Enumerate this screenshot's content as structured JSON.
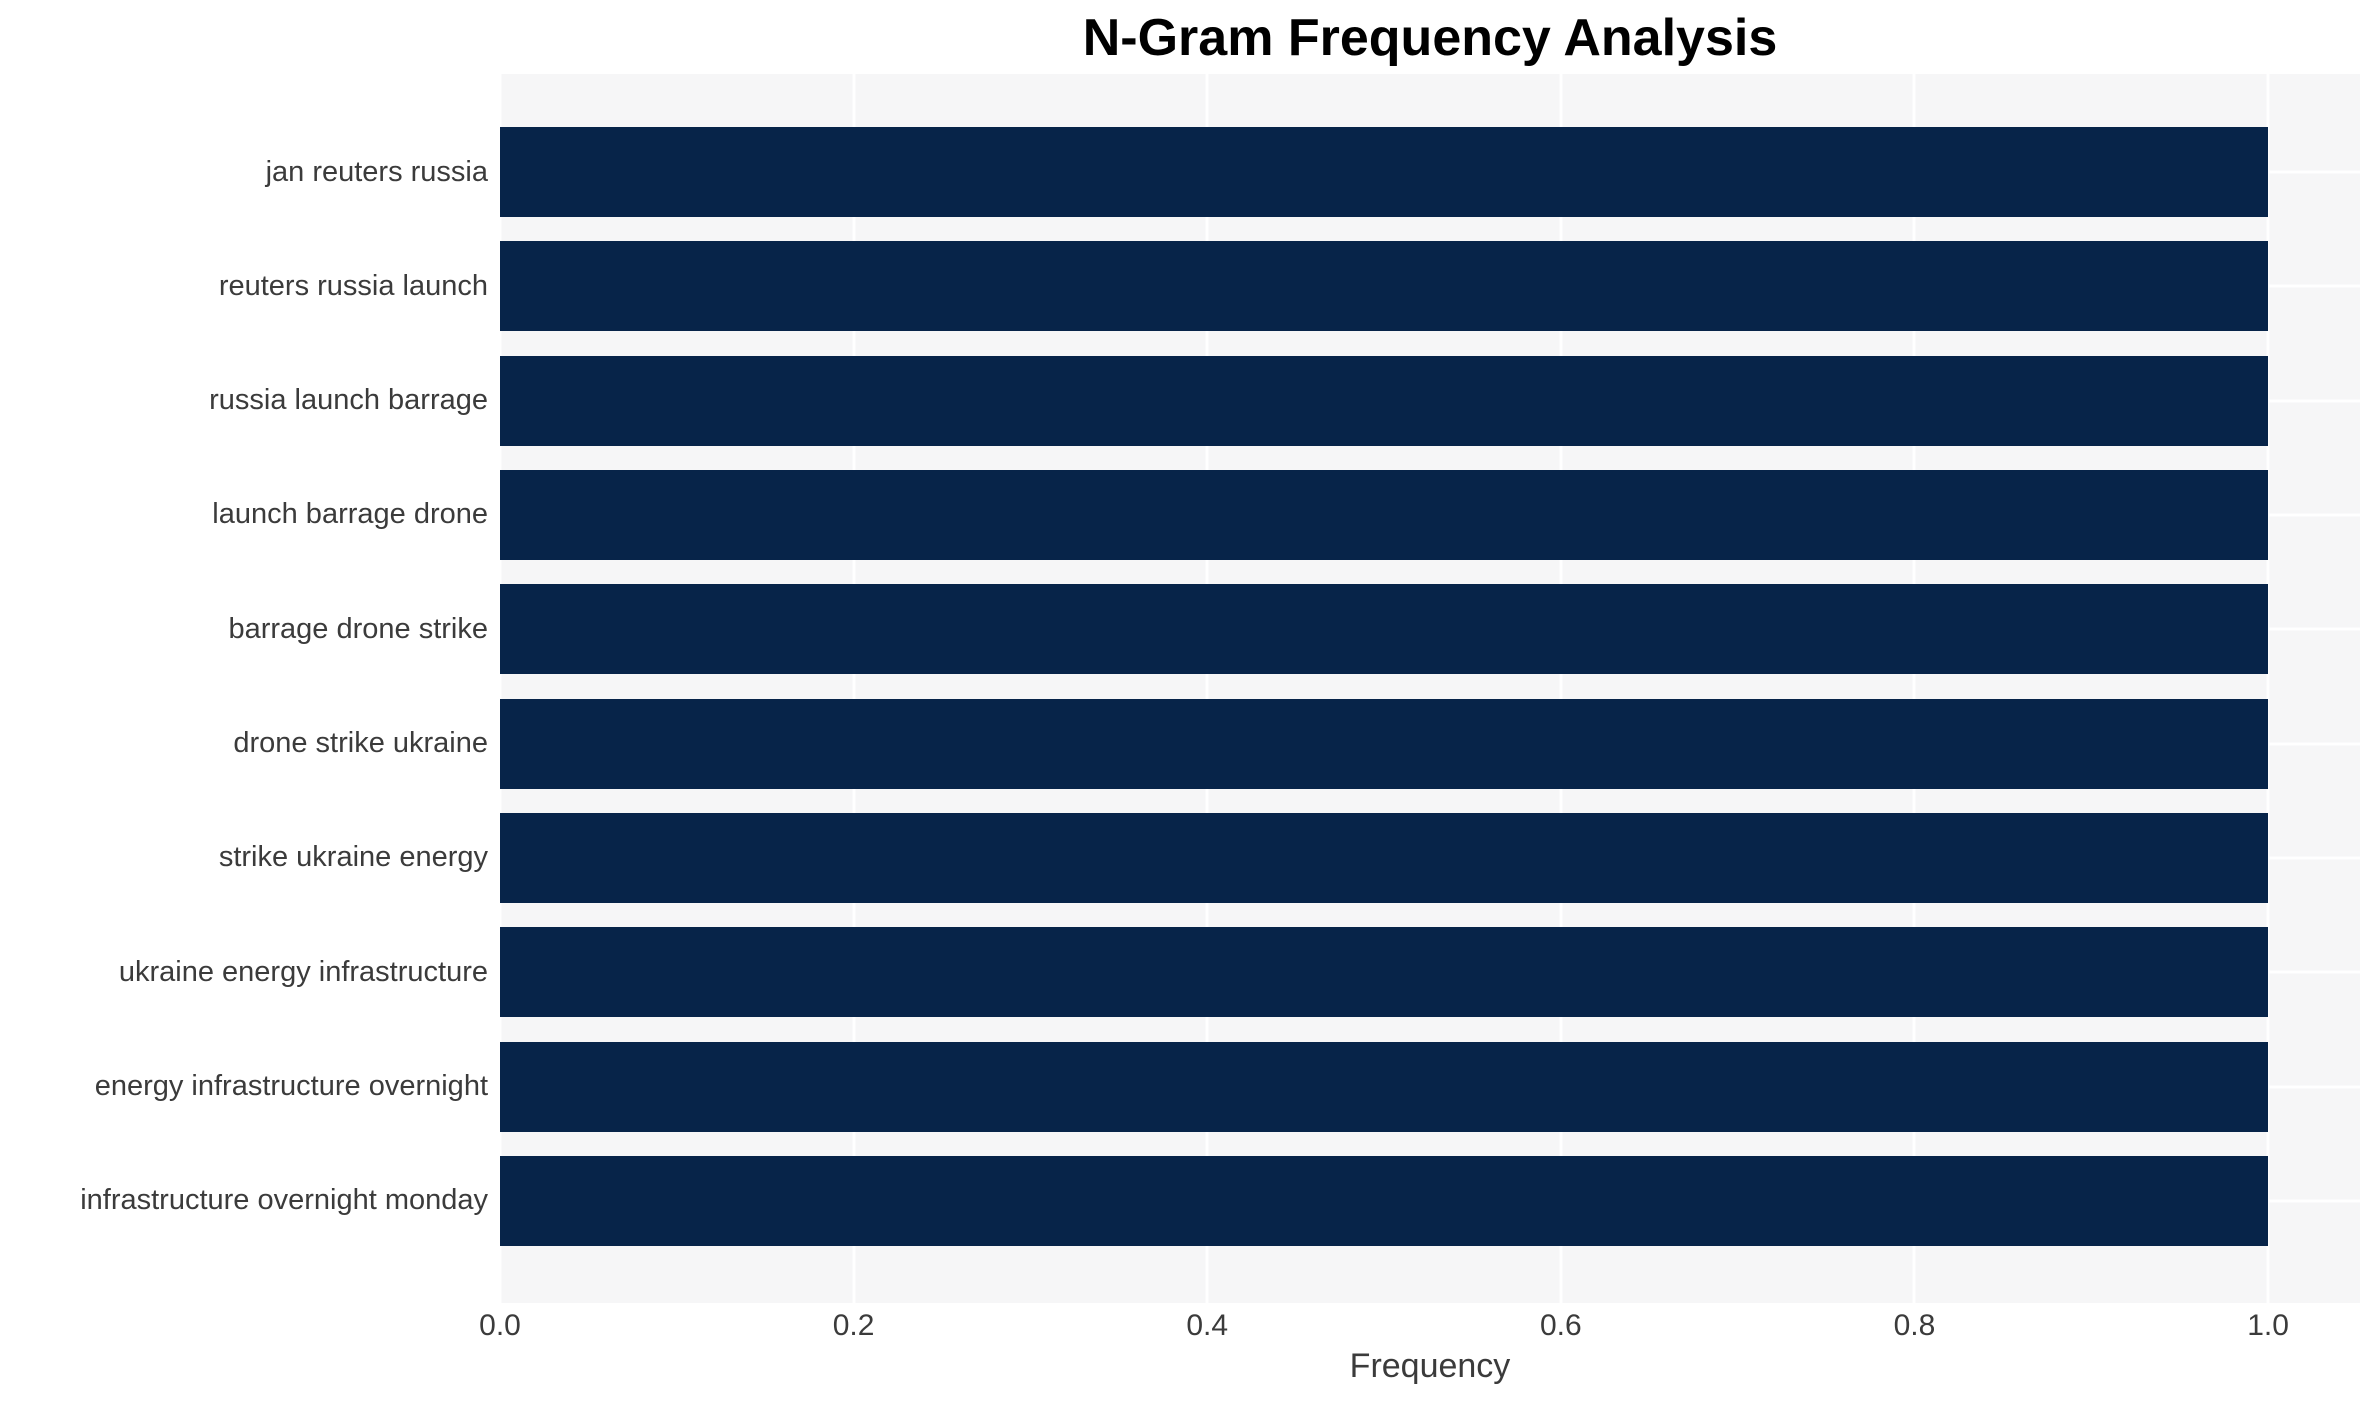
{
  "chart_data": {
    "type": "bar",
    "orientation": "horizontal",
    "title": "N-Gram Frequency Analysis",
    "xlabel": "Frequency",
    "ylabel": "",
    "categories": [
      "jan reuters russia",
      "reuters russia launch",
      "russia launch barrage",
      "launch barrage drone",
      "barrage drone strike",
      "drone strike ukraine",
      "strike ukraine energy",
      "ukraine energy infrastructure",
      "energy infrastructure overnight",
      "infrastructure overnight monday"
    ],
    "values": [
      1.0,
      1.0,
      1.0,
      1.0,
      1.0,
      1.0,
      1.0,
      1.0,
      1.0,
      1.0
    ],
    "xlim": [
      0.0,
      1.052
    ],
    "xticks": [
      0.0,
      0.2,
      0.4,
      0.6,
      0.8,
      1.0
    ],
    "xtick_labels": [
      "0.0",
      "0.2",
      "0.4",
      "0.6",
      "0.8",
      "1.0"
    ],
    "grid": true,
    "legend": false,
    "colors": {
      "bar": "#072449",
      "plot_background": "#f6f6f7",
      "gridline": "#ffffff",
      "figure_background": "#ffffff",
      "title_text": "#000000",
      "axis_text": "#3b3b3b"
    }
  }
}
